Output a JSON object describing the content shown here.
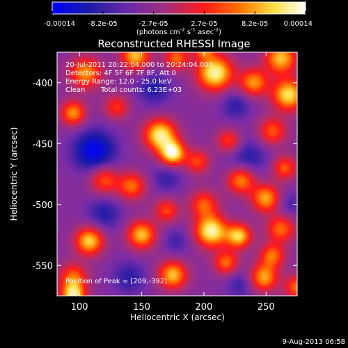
{
  "chart_data": {
    "type": "heatmap",
    "title": "Reconstructed RHESSI Image",
    "xlabel": "Heliocentric X (arcsec)",
    "ylabel": "Heliocentric Y (arcsec)",
    "xlim": [
      82,
      275
    ],
    "ylim": [
      -575,
      -375
    ],
    "xticks": [
      100,
      150,
      200,
      250
    ],
    "yticks": [
      -400,
      -450,
      -500,
      -550
    ],
    "colorbar": {
      "min": -0.00014,
      "max": 0.00014,
      "tick_labels": [
        "-0.00014",
        "-8.2e-05",
        "-2.7e-05",
        "2.7e-05",
        "8.2e-05",
        "0.00014"
      ],
      "unit_label": "(photons cm-2 s-1 asec-2)",
      "colors": [
        "#0000ff",
        "#1a1aa6",
        "#7a2da8",
        "#b02e6e",
        "#ff1a1a",
        "#ff7a00",
        "#ffe24a",
        "#ffffff"
      ]
    },
    "overlay": {
      "time_range": "20-Jul-2011 20:22:04.000 to 20:24:04.000",
      "detectors": "Detectors: 4F 5F 6F 7F 8F, Att 0",
      "energy_range": "Energy Range: 12.0 - 25.0 keV",
      "method": "Clean",
      "total_counts": "Total counts: 6.23E+03",
      "peak": "Position of Peak = [209,-392]"
    },
    "sources": [
      {
        "x": 105,
        "y": -392,
        "a": 0.7,
        "s": 9
      },
      {
        "x": 145,
        "y": -378,
        "a": 0.8,
        "s": 8
      },
      {
        "x": 178,
        "y": -380,
        "a": 0.6,
        "s": 7
      },
      {
        "x": 209,
        "y": -392,
        "a": 1.0,
        "s": 10
      },
      {
        "x": 240,
        "y": -400,
        "a": 0.7,
        "s": 8
      },
      {
        "x": 262,
        "y": -380,
        "a": 0.8,
        "s": 9
      },
      {
        "x": 268,
        "y": -410,
        "a": 0.9,
        "s": 9
      },
      {
        "x": 255,
        "y": -440,
        "a": 0.55,
        "s": 8
      },
      {
        "x": 95,
        "y": -425,
        "a": 0.7,
        "s": 7
      },
      {
        "x": 130,
        "y": -420,
        "a": 0.45,
        "s": 7
      },
      {
        "x": 165,
        "y": -443,
        "a": 0.95,
        "s": 9
      },
      {
        "x": 175,
        "y": -458,
        "a": 1.0,
        "s": 7
      },
      {
        "x": 220,
        "y": -448,
        "a": 0.5,
        "s": 7
      },
      {
        "x": 195,
        "y": -465,
        "a": 0.5,
        "s": 7
      },
      {
        "x": 120,
        "y": -480,
        "a": 0.55,
        "s": 8
      },
      {
        "x": 142,
        "y": -485,
        "a": 0.6,
        "s": 8
      },
      {
        "x": 200,
        "y": -500,
        "a": 0.55,
        "s": 8
      },
      {
        "x": 230,
        "y": -480,
        "a": 0.7,
        "s": 8
      },
      {
        "x": 250,
        "y": -495,
        "a": 0.75,
        "s": 8
      },
      {
        "x": 265,
        "y": -470,
        "a": 0.55,
        "s": 7
      },
      {
        "x": 108,
        "y": -530,
        "a": 0.85,
        "s": 8
      },
      {
        "x": 150,
        "y": -525,
        "a": 0.8,
        "s": 8
      },
      {
        "x": 170,
        "y": -505,
        "a": 0.5,
        "s": 7
      },
      {
        "x": 206,
        "y": -522,
        "a": 1.0,
        "s": 9
      },
      {
        "x": 228,
        "y": -526,
        "a": 0.85,
        "s": 7
      },
      {
        "x": 262,
        "y": -520,
        "a": 0.6,
        "s": 8
      },
      {
        "x": 95,
        "y": -560,
        "a": 0.6,
        "s": 8
      },
      {
        "x": 175,
        "y": -558,
        "a": 0.8,
        "s": 8
      },
      {
        "x": 218,
        "y": -548,
        "a": 0.6,
        "s": 7
      },
      {
        "x": 248,
        "y": -560,
        "a": 0.75,
        "s": 8
      },
      {
        "x": 255,
        "y": -542,
        "a": 0.6,
        "s": 7
      },
      {
        "x": 275,
        "y": -568,
        "a": 0.6,
        "s": 7
      },
      {
        "x": 95,
        "y": -575,
        "a": 0.9,
        "s": 7
      },
      {
        "x": 200,
        "y": -372,
        "a": 0.6,
        "s": 6
      }
    ],
    "sinks": [
      {
        "x": 112,
        "y": -456,
        "a": 1.0,
        "s": 12
      },
      {
        "x": 160,
        "y": -405,
        "a": 0.55,
        "s": 10
      },
      {
        "x": 226,
        "y": -418,
        "a": 0.5,
        "s": 9
      },
      {
        "x": 235,
        "y": -462,
        "a": 0.55,
        "s": 12
      },
      {
        "x": 170,
        "y": -478,
        "a": 0.45,
        "s": 9
      },
      {
        "x": 120,
        "y": -508,
        "a": 0.55,
        "s": 10
      },
      {
        "x": 178,
        "y": -530,
        "a": 0.4,
        "s": 8
      },
      {
        "x": 140,
        "y": -560,
        "a": 0.5,
        "s": 10
      },
      {
        "x": 268,
        "y": -500,
        "a": 0.4,
        "s": 8
      },
      {
        "x": 230,
        "y": -565,
        "a": 0.45,
        "s": 9
      }
    ]
  },
  "footer": {
    "timestamp": "9-Aug-2013 06:58"
  }
}
